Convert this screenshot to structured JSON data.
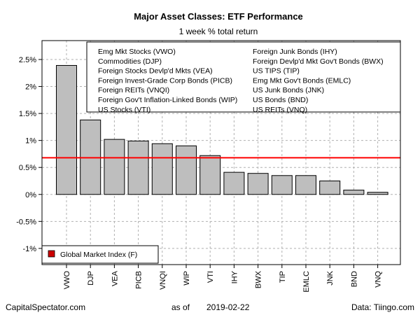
{
  "chart_data": {
    "type": "bar",
    "title": "Major Asset Classes: ETF Performance",
    "subtitle": "1 week % total return",
    "categories": [
      "VWO",
      "DJP",
      "VEA",
      "PICB",
      "VNQI",
      "WIP",
      "VTI",
      "IHY",
      "BWX",
      "TIP",
      "EMLC",
      "JNK",
      "BND",
      "VNQ"
    ],
    "values": [
      2.39,
      1.38,
      1.02,
      0.99,
      0.94,
      0.9,
      0.72,
      0.41,
      0.39,
      0.35,
      0.35,
      0.25,
      0.08,
      0.04
    ],
    "ylim": [
      -1.3,
      2.85
    ],
    "yticks": [
      -1,
      -0.5,
      0,
      0.5,
      1,
      1.5,
      2,
      2.5
    ],
    "ytick_labels": [
      "-1%",
      "-0.5%",
      "0%",
      "0.5%",
      "1%",
      "1.5%",
      "2%",
      "2.5%"
    ],
    "reference_line": {
      "value": 0.68,
      "color": "#ff0000",
      "label": "Global Market Index (F)"
    },
    "bar_color": "#bebebe",
    "grid": true,
    "legend_entries_left": [
      "Emg Mkt Stocks (VWO)",
      "Commodities (DJP)",
      "Foreign Stocks Devlp'd Mkts (VEA)",
      "Foreign Invest-Grade Corp Bonds (PICB)",
      "Foreign REITs (VNQI)",
      "Foreign Gov't Inflation-Linked Bonds (WIP)",
      "US Stocks (VTI)"
    ],
    "legend_entries_right": [
      "Foreign Junk Bonds (IHY)",
      "Foreign Devlp'd Mkt Gov't Bonds (BWX)",
      "US TIPS (TIP)",
      "Emg Mkt Gov't Bonds (EMLC)",
      "US Junk Bonds (JNK)",
      "US Bonds (BND)",
      "US REITs (VNQ)"
    ],
    "legend_placement": "top-right"
  },
  "footer": {
    "source_left": "CapitalSpectator.com",
    "as_of_label": "as of",
    "as_of_date": "2019-02-22",
    "source_right": "Data: Tiingo.com"
  }
}
